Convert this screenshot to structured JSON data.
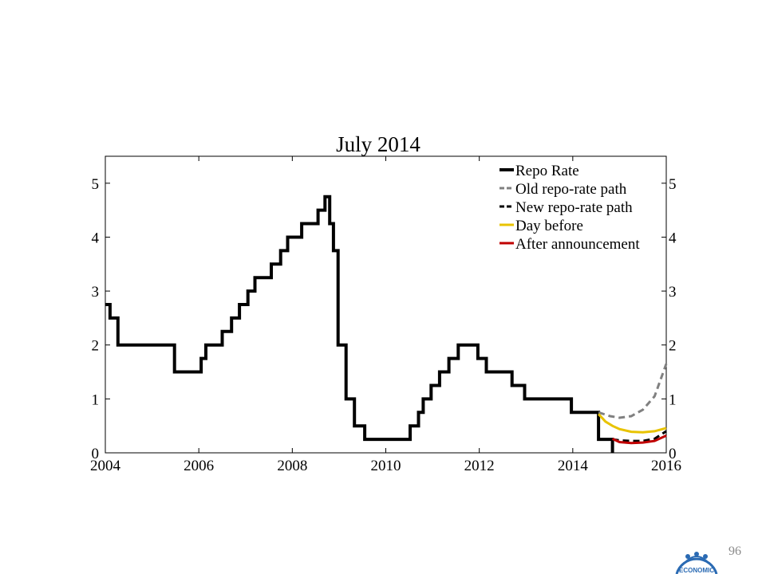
{
  "page_number": "96",
  "logo": {
    "text": "ECONOMIC",
    "icon": "institution-seal-icon",
    "color": "#2a6ab3"
  },
  "chart_data": {
    "type": "line",
    "title": "July 2014",
    "xlabel": "",
    "ylabel": "",
    "xlim": [
      2004,
      2016
    ],
    "ylim": [
      0,
      5.5
    ],
    "x_ticks": [
      2004,
      2006,
      2008,
      2010,
      2012,
      2014,
      2016
    ],
    "y_ticks": [
      0,
      1,
      2,
      3,
      4,
      5
    ],
    "right_axis_ticks": [
      0,
      1,
      2,
      3,
      4,
      5
    ],
    "grid": false,
    "legend_position": "top-right",
    "series": [
      {
        "name": "Repo Rate",
        "style": "step",
        "dash": "solid",
        "color": "#000000",
        "points": [
          [
            2004.0,
            2.75
          ],
          [
            2004.1,
            2.5
          ],
          [
            2004.27,
            2.0
          ],
          [
            2005.48,
            1.5
          ],
          [
            2006.05,
            1.75
          ],
          [
            2006.15,
            2.0
          ],
          [
            2006.5,
            2.25
          ],
          [
            2006.7,
            2.5
          ],
          [
            2006.87,
            2.75
          ],
          [
            2007.05,
            3.0
          ],
          [
            2007.2,
            3.25
          ],
          [
            2007.55,
            3.5
          ],
          [
            2007.75,
            3.75
          ],
          [
            2007.9,
            4.0
          ],
          [
            2008.2,
            4.25
          ],
          [
            2008.55,
            4.5
          ],
          [
            2008.7,
            4.75
          ],
          [
            2008.8,
            4.25
          ],
          [
            2008.88,
            3.75
          ],
          [
            2008.98,
            2.0
          ],
          [
            2009.15,
            1.0
          ],
          [
            2009.33,
            0.5
          ],
          [
            2009.55,
            0.25
          ],
          [
            2010.52,
            0.5
          ],
          [
            2010.7,
            0.75
          ],
          [
            2010.8,
            1.0
          ],
          [
            2010.97,
            1.25
          ],
          [
            2011.15,
            1.5
          ],
          [
            2011.35,
            1.75
          ],
          [
            2011.55,
            2.0
          ],
          [
            2011.97,
            1.75
          ],
          [
            2012.15,
            1.5
          ],
          [
            2012.7,
            1.25
          ],
          [
            2012.97,
            1.0
          ],
          [
            2013.97,
            0.75
          ],
          [
            2014.55,
            0.25
          ],
          [
            2014.85,
            0.25
          ],
          [
            2014.85,
            0.0
          ]
        ]
      },
      {
        "name": "Old repo-rate path",
        "style": "line",
        "dash": "dashed",
        "color": "#808080",
        "points": [
          [
            2014.55,
            0.75
          ],
          [
            2014.8,
            0.68
          ],
          [
            2015.0,
            0.65
          ],
          [
            2015.25,
            0.68
          ],
          [
            2015.5,
            0.8
          ],
          [
            2015.75,
            1.05
          ],
          [
            2016.0,
            1.65
          ]
        ]
      },
      {
        "name": "New repo-rate path",
        "style": "line",
        "dash": "dashed",
        "color": "#000000",
        "points": [
          [
            2014.85,
            0.25
          ],
          [
            2015.0,
            0.23
          ],
          [
            2015.25,
            0.22
          ],
          [
            2015.5,
            0.22
          ],
          [
            2015.75,
            0.26
          ],
          [
            2016.0,
            0.4
          ]
        ]
      },
      {
        "name": "Day before",
        "style": "line",
        "dash": "solid",
        "color": "#e8c300",
        "points": [
          [
            2014.55,
            0.72
          ],
          [
            2014.7,
            0.58
          ],
          [
            2014.85,
            0.5
          ],
          [
            2015.0,
            0.44
          ],
          [
            2015.25,
            0.39
          ],
          [
            2015.5,
            0.38
          ],
          [
            2015.75,
            0.4
          ],
          [
            2016.0,
            0.46
          ]
        ]
      },
      {
        "name": "After announcement",
        "style": "line",
        "dash": "solid",
        "color": "#c00000",
        "points": [
          [
            2014.85,
            0.26
          ],
          [
            2015.0,
            0.2
          ],
          [
            2015.25,
            0.18
          ],
          [
            2015.5,
            0.19
          ],
          [
            2015.75,
            0.22
          ],
          [
            2016.0,
            0.32
          ]
        ]
      }
    ]
  }
}
